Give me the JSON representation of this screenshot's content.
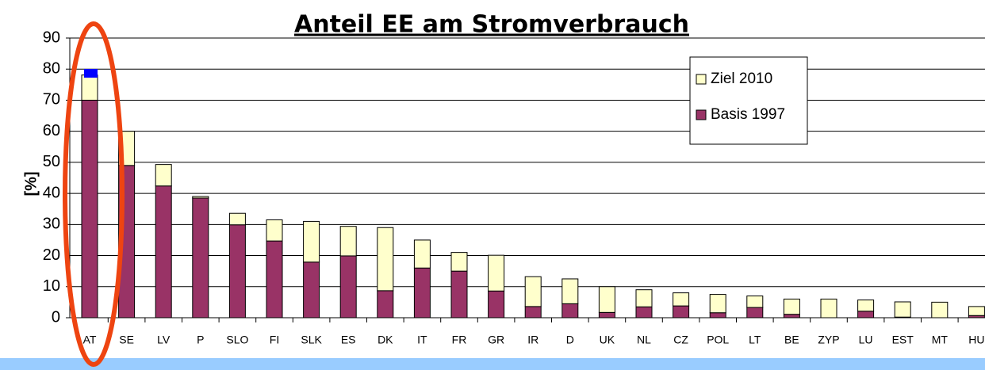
{
  "chart_data": {
    "type": "stacked_bar",
    "title": "Anteil EE am Stromverbrauch",
    "y_label": "[%]",
    "categories": [
      "AT",
      "SE",
      "LV",
      "P",
      "SLO",
      "FI",
      "SLK",
      "ES",
      "DK",
      "IT",
      "FR",
      "GR",
      "IR",
      "D",
      "UK",
      "NL",
      "CZ",
      "POL",
      "LT",
      "BE",
      "ZYP",
      "LU",
      "EST",
      "MT",
      "HU"
    ],
    "series": [
      {
        "name": "Basis 1997",
        "color": "#993366",
        "values": [
          70,
          49,
          42.4,
          38.5,
          29.9,
          24.7,
          17.9,
          19.9,
          8.7,
          16,
          15,
          8.6,
          3.6,
          4.5,
          1.7,
          3.5,
          3.8,
          1.6,
          3.3,
          1.1,
          0,
          2.1,
          0.2,
          0,
          0.7
        ]
      },
      {
        "name": "Ziel 2010",
        "color": "#ffffcc",
        "values": [
          8.1,
          11,
          6.9,
          0.5,
          3.7,
          6.8,
          13.1,
          9.5,
          20.3,
          9,
          6,
          11.5,
          9.6,
          8,
          8.3,
          5.5,
          4.2,
          5.9,
          3.7,
          4.9,
          6,
          3.6,
          4.9,
          5,
          2.9
        ]
      }
    ],
    "ylim": [
      0,
      90
    ],
    "yticks": [
      0,
      10,
      20,
      30,
      40,
      50,
      60,
      70,
      80,
      90
    ],
    "grid": true
  }
}
